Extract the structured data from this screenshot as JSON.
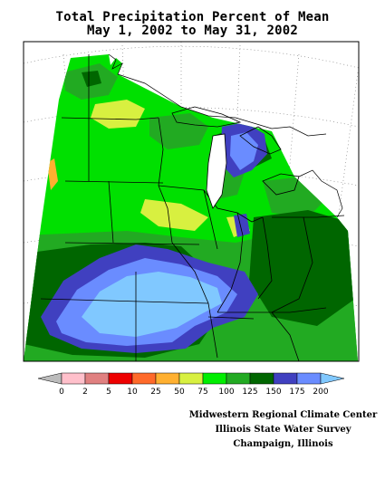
{
  "title_line1": "Total Precipitation Percent of Mean",
  "title_line2": "May 1, 2002 to May 31, 2002",
  "legend": {
    "labels": [
      "0",
      "2",
      "5",
      "10",
      "25",
      "50",
      "75",
      "100",
      "125",
      "150",
      "175",
      "200"
    ],
    "colors": [
      "#bbbbbb",
      "#ffc0cb",
      "#e08080",
      "#ee0000",
      "#ff6a2a",
      "#ffb030",
      "#d8f040",
      "#00ee00",
      "#22aa22",
      "#006600",
      "#4040c0",
      "#6a8cff",
      "#80c8ff"
    ]
  },
  "credits": {
    "line1": "Midwestern Regional Climate Center",
    "line2": "Illinois State Water Survey",
    "line3": "Champaign, Illinois"
  }
}
